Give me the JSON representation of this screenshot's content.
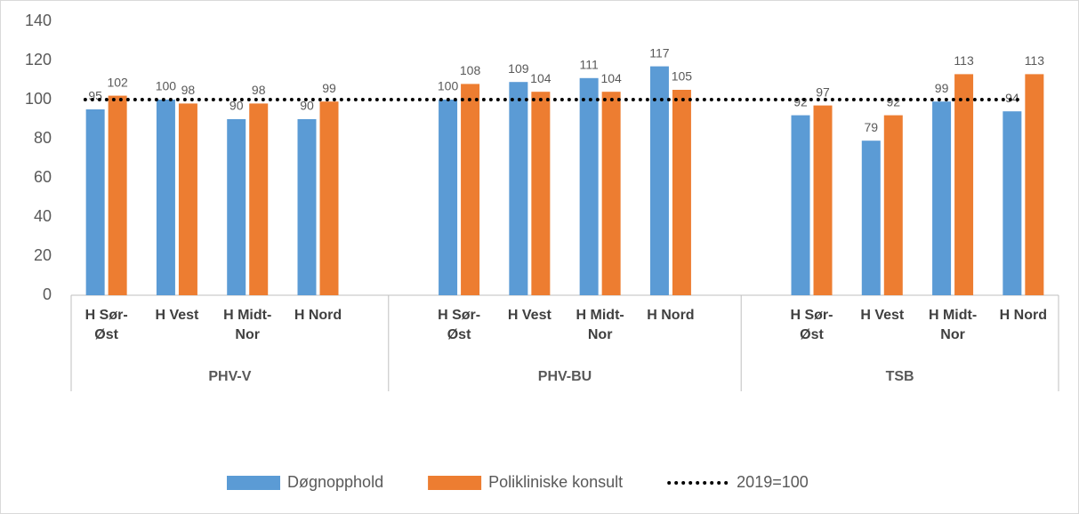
{
  "chart_data": {
    "type": "bar",
    "groups": [
      {
        "name": "PHV-V",
        "categories": [
          "H Sør-Øst",
          "H Vest",
          "H Midt-Nor",
          "H Nord"
        ]
      },
      {
        "name": "PHV-BU",
        "categories": [
          "H Sør-Øst",
          "H Vest",
          "H Midt-Nor",
          "H Nord"
        ]
      },
      {
        "name": "TSB",
        "categories": [
          "H Sør-Øst",
          "H Vest",
          "H Midt-Nor",
          "H Nord"
        ]
      }
    ],
    "series": [
      {
        "name": "Døgnopphold",
        "color": "#5b9bd5",
        "values": [
          95,
          100,
          90,
          90,
          100,
          109,
          111,
          117,
          92,
          79,
          99,
          94
        ]
      },
      {
        "name": "Polikliniske konsult",
        "color": "#ed7d31",
        "values": [
          102,
          98,
          98,
          99,
          108,
          104,
          104,
          105,
          97,
          92,
          113,
          113
        ]
      }
    ],
    "reference": {
      "name": "2019=100",
      "value": 100,
      "color": "#000000"
    },
    "ylim": [
      0,
      140
    ],
    "yticks": [
      0,
      20,
      40,
      60,
      80,
      100,
      120,
      140
    ],
    "grid": false,
    "legend": "bottom"
  }
}
